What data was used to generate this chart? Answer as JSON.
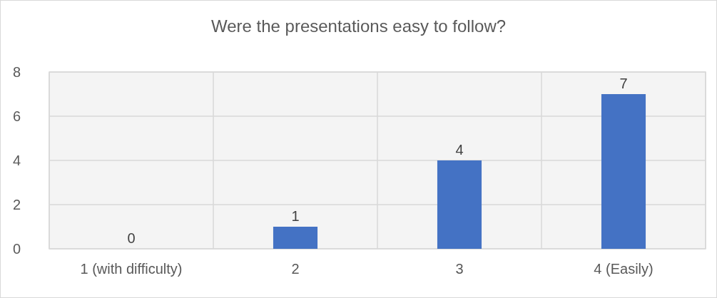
{
  "chart_data": {
    "type": "bar",
    "title": "Were the presentations easy to follow?",
    "categories": [
      "1 (with difficulty)",
      "2",
      "3",
      "4 (Easily)"
    ],
    "values": [
      0,
      1,
      4,
      7
    ],
    "color": "#4472c4",
    "ylim": [
      0,
      8
    ],
    "yticks": [
      0,
      2,
      4,
      6,
      8
    ],
    "grid": true,
    "data_labels": true
  }
}
